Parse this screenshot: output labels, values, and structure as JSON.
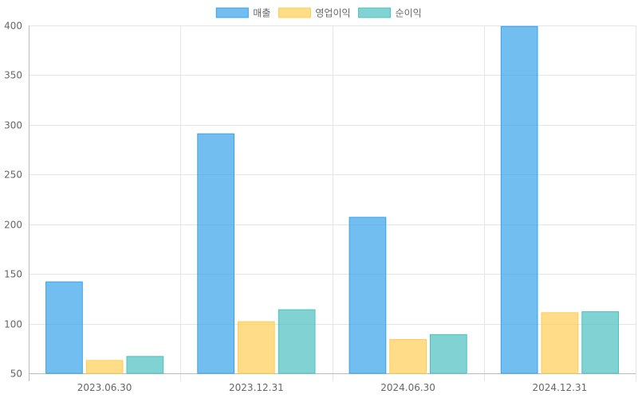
{
  "chart_data": {
    "type": "bar",
    "categories": [
      "2023.06.30",
      "2023.12.31",
      "2024.06.30",
      "2024.12.31"
    ],
    "series": [
      {
        "name": "매출",
        "values": [
          142,
          291,
          207,
          399
        ],
        "fill": "rgba(54,162,235,0.7)",
        "stroke": "#36a2eb"
      },
      {
        "name": "영업이익",
        "values": [
          63,
          102,
          84,
          111
        ],
        "fill": "rgba(255,205,86,0.7)",
        "stroke": "#ffcd56"
      },
      {
        "name": "순이익",
        "values": [
          67,
          114,
          89,
          112
        ],
        "fill": "rgba(75,192,192,0.7)",
        "stroke": "#4bc0c0"
      }
    ],
    "title": "",
    "xlabel": "",
    "ylabel": "",
    "ylim": [
      50,
      400
    ],
    "yticks": [
      50,
      100,
      150,
      200,
      250,
      300,
      350,
      400
    ],
    "grid": true,
    "legend_position": "top-center"
  }
}
